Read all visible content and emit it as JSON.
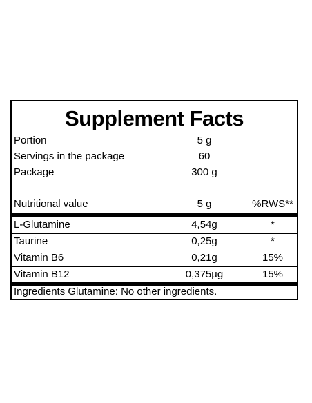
{
  "title": "Supplement Facts",
  "serving": [
    {
      "label": "Portion",
      "value": "5 g"
    },
    {
      "label": "Servings in the package",
      "value": "60"
    },
    {
      "label": "Package",
      "value": "300 g"
    }
  ],
  "header": {
    "label": "Nutritional value",
    "amount": "5 g",
    "rws": "%RWS**"
  },
  "nutrients": [
    {
      "name": "L-Glutamine",
      "amount": "4,54g",
      "rws": "*"
    },
    {
      "name": "Taurine",
      "amount": "0,25g",
      "rws": "*"
    },
    {
      "name": "Vitamin B6",
      "amount": "0,21g",
      "rws": "15%"
    },
    {
      "name": "Vitamin B12",
      "amount": "0,375µg",
      "rws": "15%"
    }
  ],
  "ingredients": "Ingredients Glutamine: No other ingredients."
}
